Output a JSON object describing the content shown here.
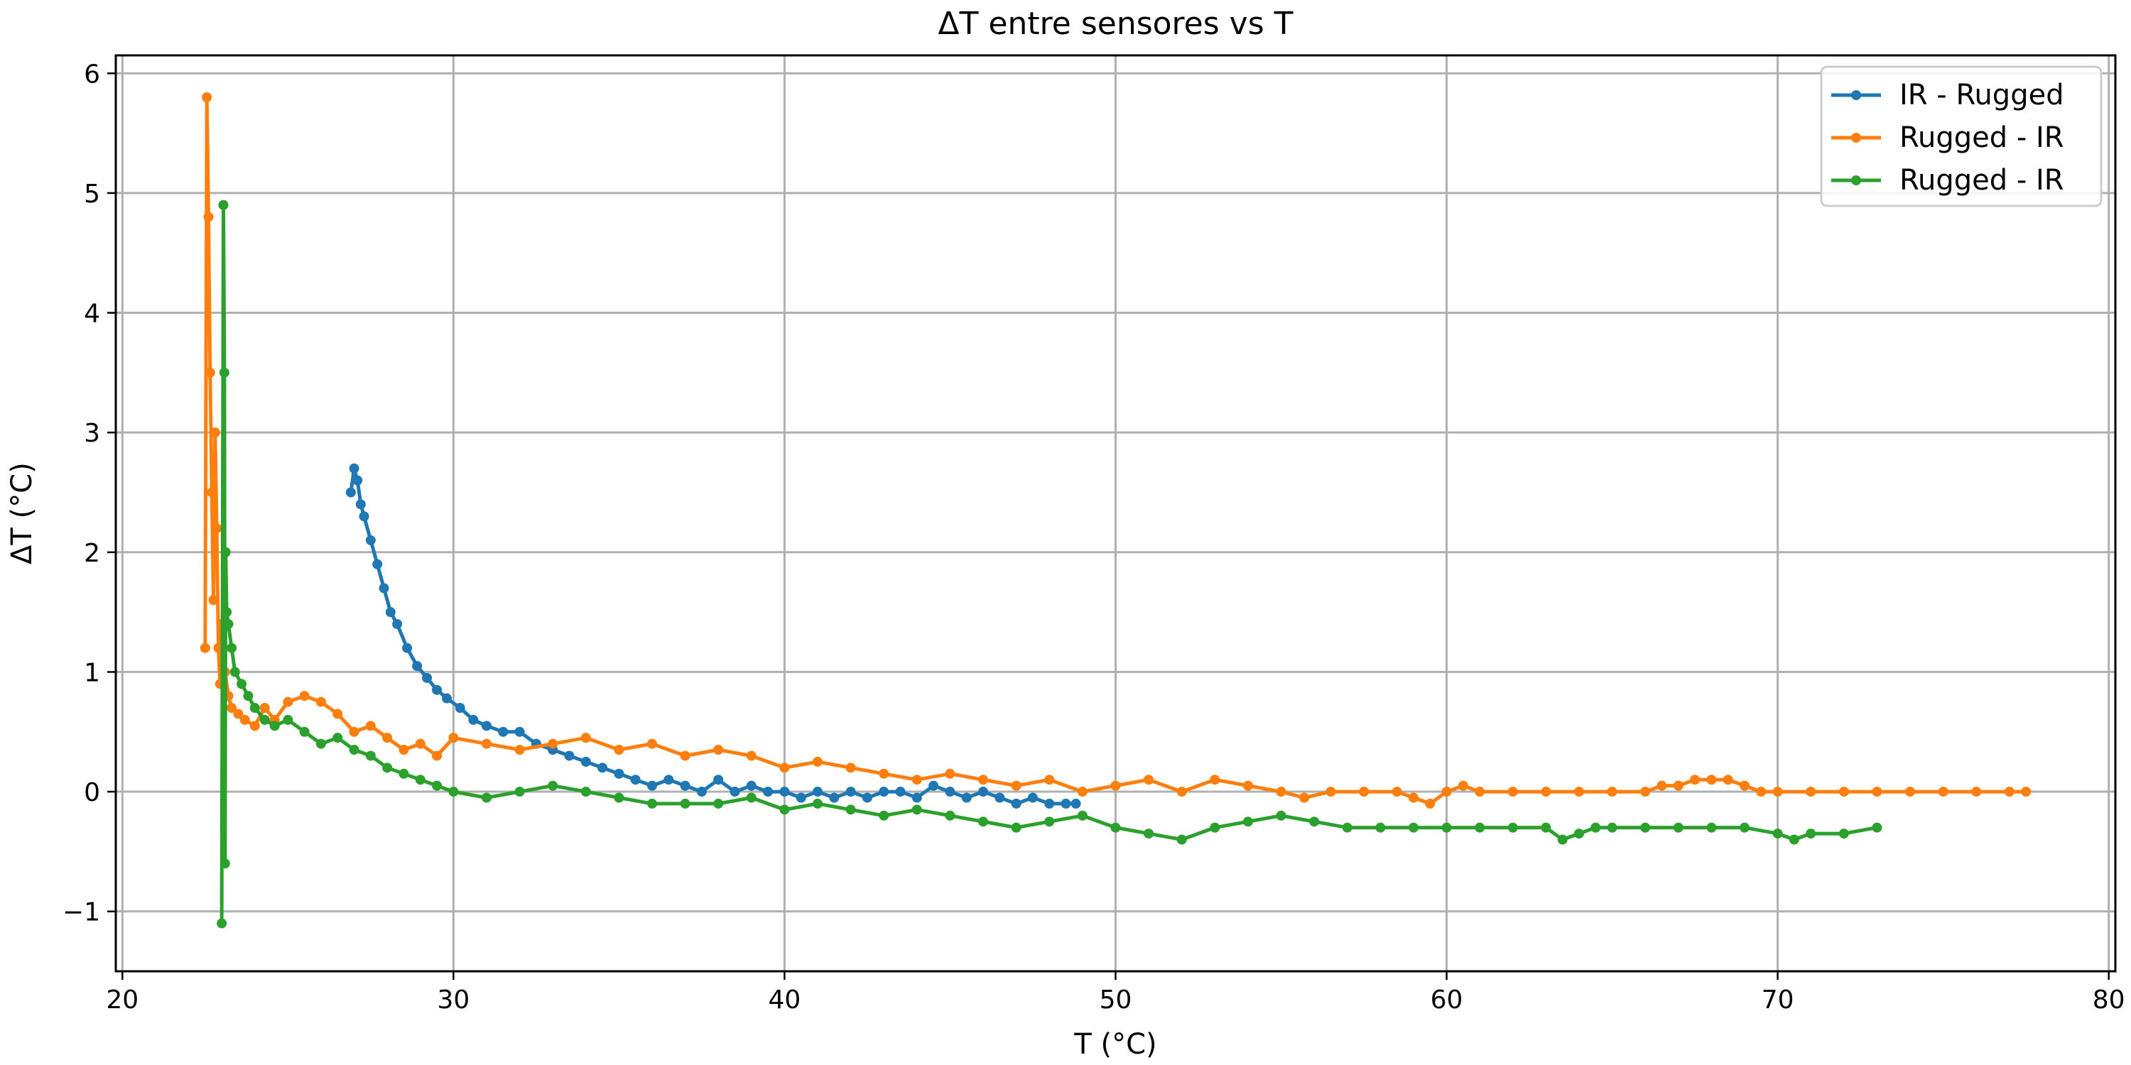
{
  "chart_data": {
    "type": "line",
    "title": "ΔT entre sensores vs T",
    "xlabel": "T (°C)",
    "ylabel": "ΔT (°C)",
    "xlim": [
      19.8,
      80.2
    ],
    "ylim": [
      -1.5,
      6.15
    ],
    "xticks": [
      20,
      30,
      40,
      50,
      60,
      70,
      80
    ],
    "yticks": [
      -1,
      0,
      1,
      2,
      3,
      4,
      5,
      6
    ],
    "xtick_labels": [
      "20",
      "30",
      "40",
      "50",
      "60",
      "70",
      "80"
    ],
    "ytick_labels": [
      "−1",
      "0",
      "1",
      "2",
      "3",
      "4",
      "5",
      "6"
    ],
    "grid": true,
    "legend_position": "top-right",
    "series": [
      {
        "name": "IR - Rugged",
        "color": "#1f77b4",
        "x": [
          26.9,
          27.0,
          27.1,
          27.2,
          27.3,
          27.5,
          27.7,
          27.9,
          28.1,
          28.3,
          28.6,
          28.9,
          29.2,
          29.5,
          29.8,
          30.2,
          30.6,
          31.0,
          31.5,
          32.0,
          32.5,
          33.0,
          33.5,
          34.0,
          34.5,
          35.0,
          35.5,
          36.0,
          36.5,
          37.0,
          37.5,
          38.0,
          38.5,
          39.0,
          39.5,
          40.0,
          40.5,
          41.0,
          41.5,
          42.0,
          42.5,
          43.0,
          43.5,
          44.0,
          44.5,
          45.0,
          45.5,
          46.0,
          46.5,
          47.0,
          47.5,
          48.0,
          48.5,
          48.8
        ],
        "y": [
          2.5,
          2.7,
          2.6,
          2.4,
          2.3,
          2.1,
          1.9,
          1.7,
          1.5,
          1.4,
          1.2,
          1.05,
          0.95,
          0.85,
          0.78,
          0.7,
          0.6,
          0.55,
          0.5,
          0.5,
          0.4,
          0.35,
          0.3,
          0.25,
          0.2,
          0.15,
          0.1,
          0.05,
          0.1,
          0.05,
          0.0,
          0.1,
          0.0,
          0.05,
          0.0,
          0.0,
          -0.05,
          0.0,
          -0.05,
          0.0,
          -0.05,
          0.0,
          0.0,
          -0.05,
          0.05,
          0.0,
          -0.05,
          0.0,
          -0.05,
          -0.1,
          -0.05,
          -0.1,
          -0.1,
          -0.1
        ]
      },
      {
        "name": "Rugged - IR",
        "color": "#ff7f0e",
        "x": [
          22.5,
          22.55,
          22.6,
          22.65,
          22.7,
          22.75,
          22.8,
          22.85,
          22.9,
          22.95,
          23.0,
          23.1,
          23.2,
          23.3,
          23.5,
          23.7,
          24.0,
          24.3,
          24.6,
          25.0,
          25.5,
          26.0,
          26.5,
          27.0,
          27.5,
          28.0,
          28.5,
          29.0,
          29.5,
          30.0,
          31.0,
          32.0,
          33.0,
          34.0,
          35.0,
          36.0,
          37.0,
          38.0,
          39.0,
          40.0,
          41.0,
          42.0,
          43.0,
          44.0,
          45.0,
          46.0,
          47.0,
          48.0,
          49.0,
          50.0,
          51.0,
          52.0,
          53.0,
          54.0,
          55.0,
          55.7,
          56.5,
          57.5,
          58.5,
          59.0,
          59.5,
          60.0,
          60.5,
          61.0,
          62.0,
          63.0,
          64.0,
          65.0,
          66.0,
          66.5,
          67.0,
          67.5,
          68.0,
          68.5,
          69.0,
          69.5,
          70.0,
          71.0,
          72.0,
          73.0,
          74.0,
          75.0,
          76.0,
          77.0,
          77.5
        ],
        "y": [
          1.2,
          5.8,
          4.8,
          3.5,
          2.5,
          1.6,
          3.0,
          2.2,
          1.2,
          0.9,
          1.4,
          1.0,
          0.8,
          0.7,
          0.65,
          0.6,
          0.55,
          0.7,
          0.6,
          0.75,
          0.8,
          0.75,
          0.65,
          0.5,
          0.55,
          0.45,
          0.35,
          0.4,
          0.3,
          0.45,
          0.4,
          0.35,
          0.4,
          0.45,
          0.35,
          0.4,
          0.3,
          0.35,
          0.3,
          0.2,
          0.25,
          0.2,
          0.15,
          0.1,
          0.15,
          0.1,
          0.05,
          0.1,
          0.0,
          0.05,
          0.1,
          0.0,
          0.1,
          0.05,
          0.0,
          -0.05,
          0.0,
          0.0,
          0.0,
          -0.05,
          -0.1,
          0.0,
          0.05,
          0.0,
          0.0,
          0.0,
          0.0,
          0.0,
          0.0,
          0.05,
          0.05,
          0.1,
          0.1,
          0.1,
          0.05,
          0.0,
          0.0,
          0.0,
          0.0,
          0.0,
          0.0,
          0.0,
          0.0,
          0.0,
          0.0
        ]
      },
      {
        "name": "Rugged - IR",
        "color": "#2ca02c",
        "x": [
          23.0,
          23.05,
          23.08,
          23.1,
          23.12,
          23.15,
          23.2,
          23.3,
          23.4,
          23.6,
          23.8,
          24.0,
          24.3,
          24.6,
          25.0,
          25.5,
          26.0,
          26.5,
          27.0,
          27.5,
          28.0,
          28.5,
          29.0,
          29.5,
          30.0,
          31.0,
          32.0,
          33.0,
          34.0,
          35.0,
          36.0,
          37.0,
          38.0,
          39.0,
          40.0,
          41.0,
          42.0,
          43.0,
          44.0,
          45.0,
          46.0,
          47.0,
          48.0,
          49.0,
          50.0,
          51.0,
          52.0,
          53.0,
          54.0,
          55.0,
          56.0,
          57.0,
          58.0,
          59.0,
          60.0,
          61.0,
          62.0,
          63.0,
          63.5,
          64.0,
          64.5,
          65.0,
          66.0,
          67.0,
          68.0,
          69.0,
          70.0,
          70.5,
          71.0,
          72.0,
          73.0
        ],
        "y": [
          -1.1,
          4.9,
          3.5,
          -0.6,
          2.0,
          1.5,
          1.4,
          1.2,
          1.0,
          0.9,
          0.8,
          0.7,
          0.6,
          0.55,
          0.6,
          0.5,
          0.4,
          0.45,
          0.35,
          0.3,
          0.2,
          0.15,
          0.1,
          0.05,
          0.0,
          -0.05,
          0.0,
          0.05,
          0.0,
          -0.05,
          -0.1,
          -0.1,
          -0.1,
          -0.05,
          -0.15,
          -0.1,
          -0.15,
          -0.2,
          -0.15,
          -0.2,
          -0.25,
          -0.3,
          -0.25,
          -0.2,
          -0.3,
          -0.35,
          -0.4,
          -0.3,
          -0.25,
          -0.2,
          -0.25,
          -0.3,
          -0.3,
          -0.3,
          -0.3,
          -0.3,
          -0.3,
          -0.3,
          -0.4,
          -0.35,
          -0.3,
          -0.3,
          -0.3,
          -0.3,
          -0.3,
          -0.3,
          -0.35,
          -0.4,
          -0.35,
          -0.35,
          -0.3
        ]
      }
    ]
  }
}
